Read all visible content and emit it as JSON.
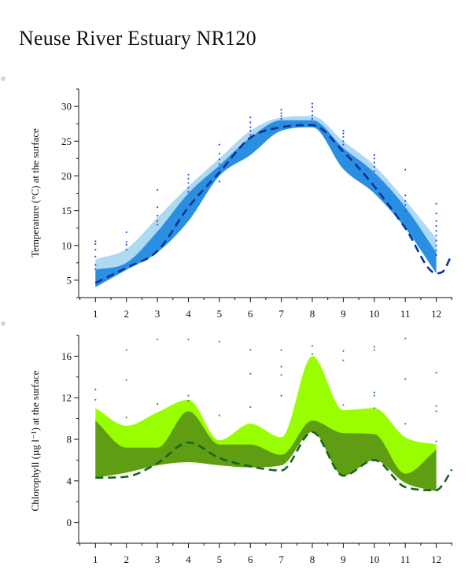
{
  "page": {
    "title": "Neuse River Estuary NR120"
  },
  "chart_data": [
    {
      "type": "area",
      "ylabel": "Temperature (°C) at the surface",
      "xlabel": "",
      "ylim": [
        2.5,
        32.5
      ],
      "xlim": [
        0.5,
        12.5
      ],
      "yticks": [
        5,
        10,
        15,
        20,
        25,
        30
      ],
      "xticks": [
        1,
        2,
        3,
        4,
        5,
        6,
        7,
        8,
        9,
        10,
        11,
        12
      ],
      "colors": {
        "outer": "#aed9f2",
        "inner": "#2a8fe0",
        "line": "#0b2f9e",
        "points": "#3a4ad8"
      },
      "outer_band": {
        "x": [
          1,
          2,
          3,
          4,
          5,
          6,
          7,
          8,
          9,
          10,
          11,
          12
        ],
        "low": [
          4.0,
          6.8,
          9.3,
          14.5,
          20.5,
          24.0,
          27.0,
          27.0,
          22.0,
          17.5,
          12.5,
          6.0
        ],
        "high": [
          8.0,
          9.5,
          14.0,
          18.5,
          22.5,
          26.5,
          28.4,
          28.6,
          25.0,
          21.5,
          16.5,
          11.0
        ]
      },
      "inner_band": {
        "x": [
          1,
          2,
          3,
          4,
          5,
          6,
          7,
          8,
          9,
          10,
          11,
          12
        ],
        "low": [
          4.0,
          6.5,
          9.0,
          13.5,
          20.0,
          23.0,
          26.5,
          27.0,
          21.0,
          17.5,
          12.5,
          6.0
        ],
        "high": [
          6.5,
          7.5,
          12.0,
          17.5,
          21.5,
          25.5,
          28.0,
          28.0,
          24.0,
          20.5,
          15.5,
          9.0
        ]
      },
      "median_line": {
        "x": [
          1,
          2,
          3,
          4,
          5,
          6,
          7,
          8,
          9,
          10,
          11,
          12,
          12.2,
          12.5
        ],
        "y": [
          4.6,
          6.8,
          9.2,
          15.5,
          20.5,
          25.5,
          27.0,
          27.3,
          23.5,
          18.5,
          12.5,
          6.0,
          6.2,
          8.7
        ]
      },
      "points": [
        [
          1,
          10.6
        ],
        [
          1,
          10.2
        ],
        [
          1,
          9.4
        ],
        [
          1,
          8.4
        ],
        [
          1,
          7.2
        ],
        [
          1,
          6.6
        ],
        [
          2,
          11.9
        ],
        [
          2,
          10.5
        ],
        [
          2,
          10.1
        ],
        [
          2,
          9.4
        ],
        [
          3,
          18.0
        ],
        [
          3,
          15.5
        ],
        [
          3,
          14.3
        ],
        [
          3,
          13.5
        ],
        [
          3,
          13.0
        ],
        [
          4,
          20.2
        ],
        [
          4,
          19.6
        ],
        [
          4,
          19.0
        ],
        [
          4,
          18.3
        ],
        [
          4,
          17.7
        ],
        [
          5,
          24.5
        ],
        [
          5,
          23.2
        ],
        [
          5,
          22.4
        ],
        [
          5,
          21.7
        ],
        [
          5,
          21.0
        ],
        [
          5,
          19.2
        ],
        [
          6,
          28.4
        ],
        [
          6,
          27.7
        ],
        [
          6,
          27.0
        ],
        [
          6,
          26.5
        ],
        [
          6,
          25.9
        ],
        [
          7,
          29.5
        ],
        [
          7,
          29.0
        ],
        [
          7,
          28.6
        ],
        [
          7,
          28.2
        ],
        [
          8,
          30.4
        ],
        [
          8,
          29.9
        ],
        [
          8,
          29.3
        ],
        [
          8,
          28.7
        ],
        [
          8,
          28.2
        ],
        [
          9,
          26.5
        ],
        [
          9,
          26.1
        ],
        [
          9,
          25.6
        ],
        [
          9,
          25.0
        ],
        [
          9,
          24.5
        ],
        [
          10,
          23.0
        ],
        [
          10,
          22.5
        ],
        [
          10,
          21.9
        ],
        [
          10,
          21.3
        ],
        [
          10,
          20.7
        ],
        [
          11,
          20.9
        ],
        [
          11,
          17.2
        ],
        [
          11,
          16.4
        ],
        [
          11,
          15.8
        ],
        [
          11,
          15.0
        ],
        [
          12,
          16.0
        ],
        [
          12,
          14.6
        ],
        [
          12,
          13.5
        ],
        [
          12,
          12.8
        ],
        [
          12,
          12.1
        ],
        [
          12,
          11.4
        ],
        [
          12,
          10.7
        ],
        [
          12,
          10.0
        ],
        [
          12,
          9.3
        ],
        [
          12,
          8.6
        ]
      ]
    },
    {
      "type": "area",
      "ylabel": "Chlorophyll (µg l⁻¹) at the surface",
      "xlabel": "",
      "ylim": [
        -2,
        18
      ],
      "xlim": [
        0.5,
        12.5
      ],
      "yticks": [
        0,
        4,
        8,
        12,
        16
      ],
      "xticks": [
        1,
        2,
        3,
        4,
        5,
        6,
        7,
        8,
        9,
        10,
        11,
        12
      ],
      "colors": {
        "outer": "#99ff00",
        "inner": "#5f9e12",
        "line": "#15631e",
        "points": "#2e8b8b"
      },
      "outer_band": {
        "x": [
          1,
          2,
          3,
          4,
          5,
          6,
          7,
          8,
          9,
          10,
          11,
          12
        ],
        "low": [
          4.3,
          4.8,
          5.5,
          5.8,
          5.5,
          5.3,
          5.5,
          8.7,
          4.5,
          6.0,
          3.8,
          3.0
        ],
        "high": [
          11.0,
          9.3,
          10.6,
          11.8,
          7.9,
          9.5,
          8.2,
          16.0,
          10.8,
          11.0,
          8.2,
          7.5
        ]
      },
      "inner_band": {
        "x": [
          1,
          2,
          3,
          4,
          5,
          6,
          7,
          8,
          9,
          10,
          11,
          12
        ],
        "low": [
          4.3,
          4.8,
          5.5,
          5.8,
          5.5,
          5.3,
          5.5,
          8.7,
          4.5,
          6.0,
          3.8,
          3.0
        ],
        "high": [
          9.8,
          7.2,
          7.2,
          10.7,
          7.5,
          7.5,
          6.5,
          9.8,
          8.6,
          8.5,
          4.7,
          7.0
        ]
      },
      "median_line": {
        "x": [
          1,
          2,
          3,
          4,
          5,
          6,
          7,
          8,
          9,
          10,
          11,
          12,
          12.2,
          12.5
        ],
        "y": [
          4.3,
          4.4,
          5.7,
          7.7,
          6.2,
          5.4,
          5.0,
          8.7,
          4.5,
          6.0,
          3.4,
          3.1,
          3.6,
          5.1
        ]
      },
      "points": [
        [
          1,
          12.8
        ],
        [
          1,
          11.8
        ],
        [
          2,
          16.6
        ],
        [
          2,
          13.7
        ],
        [
          2,
          10.1
        ],
        [
          3,
          17.6
        ],
        [
          3,
          11.4
        ],
        [
          4,
          17.6
        ],
        [
          4,
          12.2
        ],
        [
          4,
          11.7
        ],
        [
          5,
          17.4
        ],
        [
          5,
          10.3
        ],
        [
          6,
          16.6
        ],
        [
          6,
          14.3
        ],
        [
          6,
          11.1
        ],
        [
          7,
          16.6
        ],
        [
          7,
          15.0
        ],
        [
          7,
          14.2
        ],
        [
          7,
          12.2
        ],
        [
          8,
          17.0
        ],
        [
          8,
          16.2
        ],
        [
          9,
          16.5
        ],
        [
          9,
          15.6
        ],
        [
          9,
          11.3
        ],
        [
          10,
          16.9
        ],
        [
          10,
          16.6
        ],
        [
          10,
          12.5
        ],
        [
          10,
          12.2
        ],
        [
          10,
          11.0
        ],
        [
          11,
          17.7
        ],
        [
          11,
          13.8
        ],
        [
          11,
          9.5
        ],
        [
          12,
          14.4
        ],
        [
          12,
          11.2
        ],
        [
          12,
          10.7
        ],
        [
          12,
          7.8
        ]
      ]
    }
  ]
}
